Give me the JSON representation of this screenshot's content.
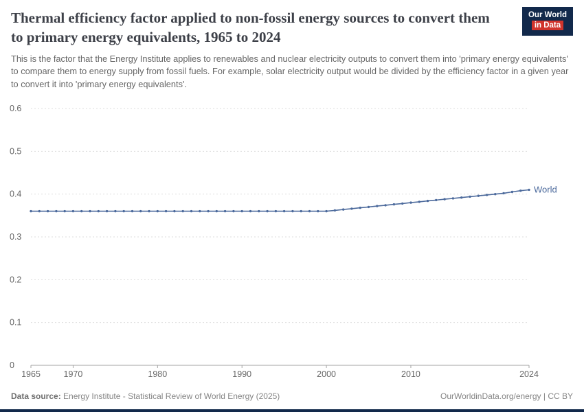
{
  "header": {
    "title": "Thermal efficiency factor applied to non-fossil energy sources to convert them to primary energy equivalents, 1965 to 2024",
    "subtitle": "This is the factor that the Energy Institute applies to renewables and nuclear electricity outputs to convert them into 'primary energy equivalents' to compare them to energy supply from fossil fuels. For example, solar electricity output would be divided by the efficiency factor in a given year to convert it into 'primary energy equivalents'.",
    "logo": {
      "line1": "Our World",
      "line2": "in Data"
    }
  },
  "footer": {
    "datasource_label": "Data source:",
    "datasource_text": "Energy Institute - Statistical Review of World Energy (2025)",
    "rights": "OurWorldinData.org/energy | CC BY"
  },
  "colors": {
    "line": "#4C6A9C",
    "logo_bg": "#12294b",
    "logo_accent": "#d0342c",
    "gridline": "#dcdcdc",
    "axis": "#a3a3a3"
  },
  "chart_data": {
    "type": "line",
    "title": "Thermal efficiency factor applied to non-fossil energy sources to convert them to primary energy equivalents, 1965 to 2024",
    "xlabel": "",
    "ylabel": "",
    "ylim": [
      0,
      0.6
    ],
    "yticks": [
      0,
      0.1,
      0.2,
      0.3,
      0.4,
      0.5,
      0.6
    ],
    "xticks": [
      1965,
      1970,
      1980,
      1990,
      2000,
      2010,
      2024
    ],
    "grid": true,
    "legend_position": "end-of-line",
    "x": [
      1965,
      1966,
      1967,
      1968,
      1969,
      1970,
      1971,
      1972,
      1973,
      1974,
      1975,
      1976,
      1977,
      1978,
      1979,
      1980,
      1981,
      1982,
      1983,
      1984,
      1985,
      1986,
      1987,
      1988,
      1989,
      1990,
      1991,
      1992,
      1993,
      1994,
      1995,
      1996,
      1997,
      1998,
      1999,
      2000,
      2001,
      2002,
      2003,
      2004,
      2005,
      2006,
      2007,
      2008,
      2009,
      2010,
      2011,
      2012,
      2013,
      2014,
      2015,
      2016,
      2017,
      2018,
      2019,
      2020,
      2021,
      2022,
      2023,
      2024
    ],
    "series": [
      {
        "name": "World",
        "color": "#4C6A9C",
        "values": [
          0.36,
          0.36,
          0.36,
          0.36,
          0.36,
          0.36,
          0.36,
          0.36,
          0.36,
          0.36,
          0.36,
          0.36,
          0.36,
          0.36,
          0.36,
          0.36,
          0.36,
          0.36,
          0.36,
          0.36,
          0.36,
          0.36,
          0.36,
          0.36,
          0.36,
          0.36,
          0.36,
          0.36,
          0.36,
          0.36,
          0.36,
          0.36,
          0.36,
          0.36,
          0.36,
          0.36,
          0.362,
          0.364,
          0.366,
          0.368,
          0.37,
          0.372,
          0.374,
          0.376,
          0.378,
          0.38,
          0.382,
          0.384,
          0.386,
          0.388,
          0.39,
          0.392,
          0.394,
          0.396,
          0.398,
          0.4,
          0.402,
          0.405,
          0.408,
          0.41
        ]
      }
    ]
  }
}
